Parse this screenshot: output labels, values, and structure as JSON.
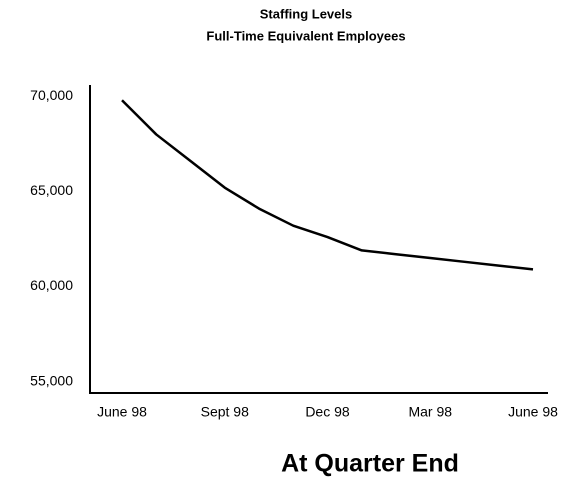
{
  "chart_data": {
    "type": "line",
    "title": "Staffing Levels",
    "subtitle": "Full-Time Equivalent Employees",
    "x_label": "At Quarter End",
    "categories": [
      "June 98",
      null,
      null,
      "Sept 98",
      null,
      null,
      "Dec 98",
      null,
      null,
      "Mar 98",
      null,
      null,
      "June 98"
    ],
    "values": [
      69800,
      68000,
      66600,
      65200,
      64100,
      63200,
      62600,
      61900,
      61700,
      61500,
      61300,
      61100,
      60900
    ],
    "color": "#000000",
    "ylim": [
      54400,
      70600
    ],
    "yticks": [
      {
        "value": 55000,
        "label": "55,000"
      },
      {
        "value": 60000,
        "label": "60,000"
      },
      {
        "value": 65000,
        "label": "65,000"
      },
      {
        "value": 70000,
        "label": "70,000"
      }
    ],
    "grid": false
  }
}
